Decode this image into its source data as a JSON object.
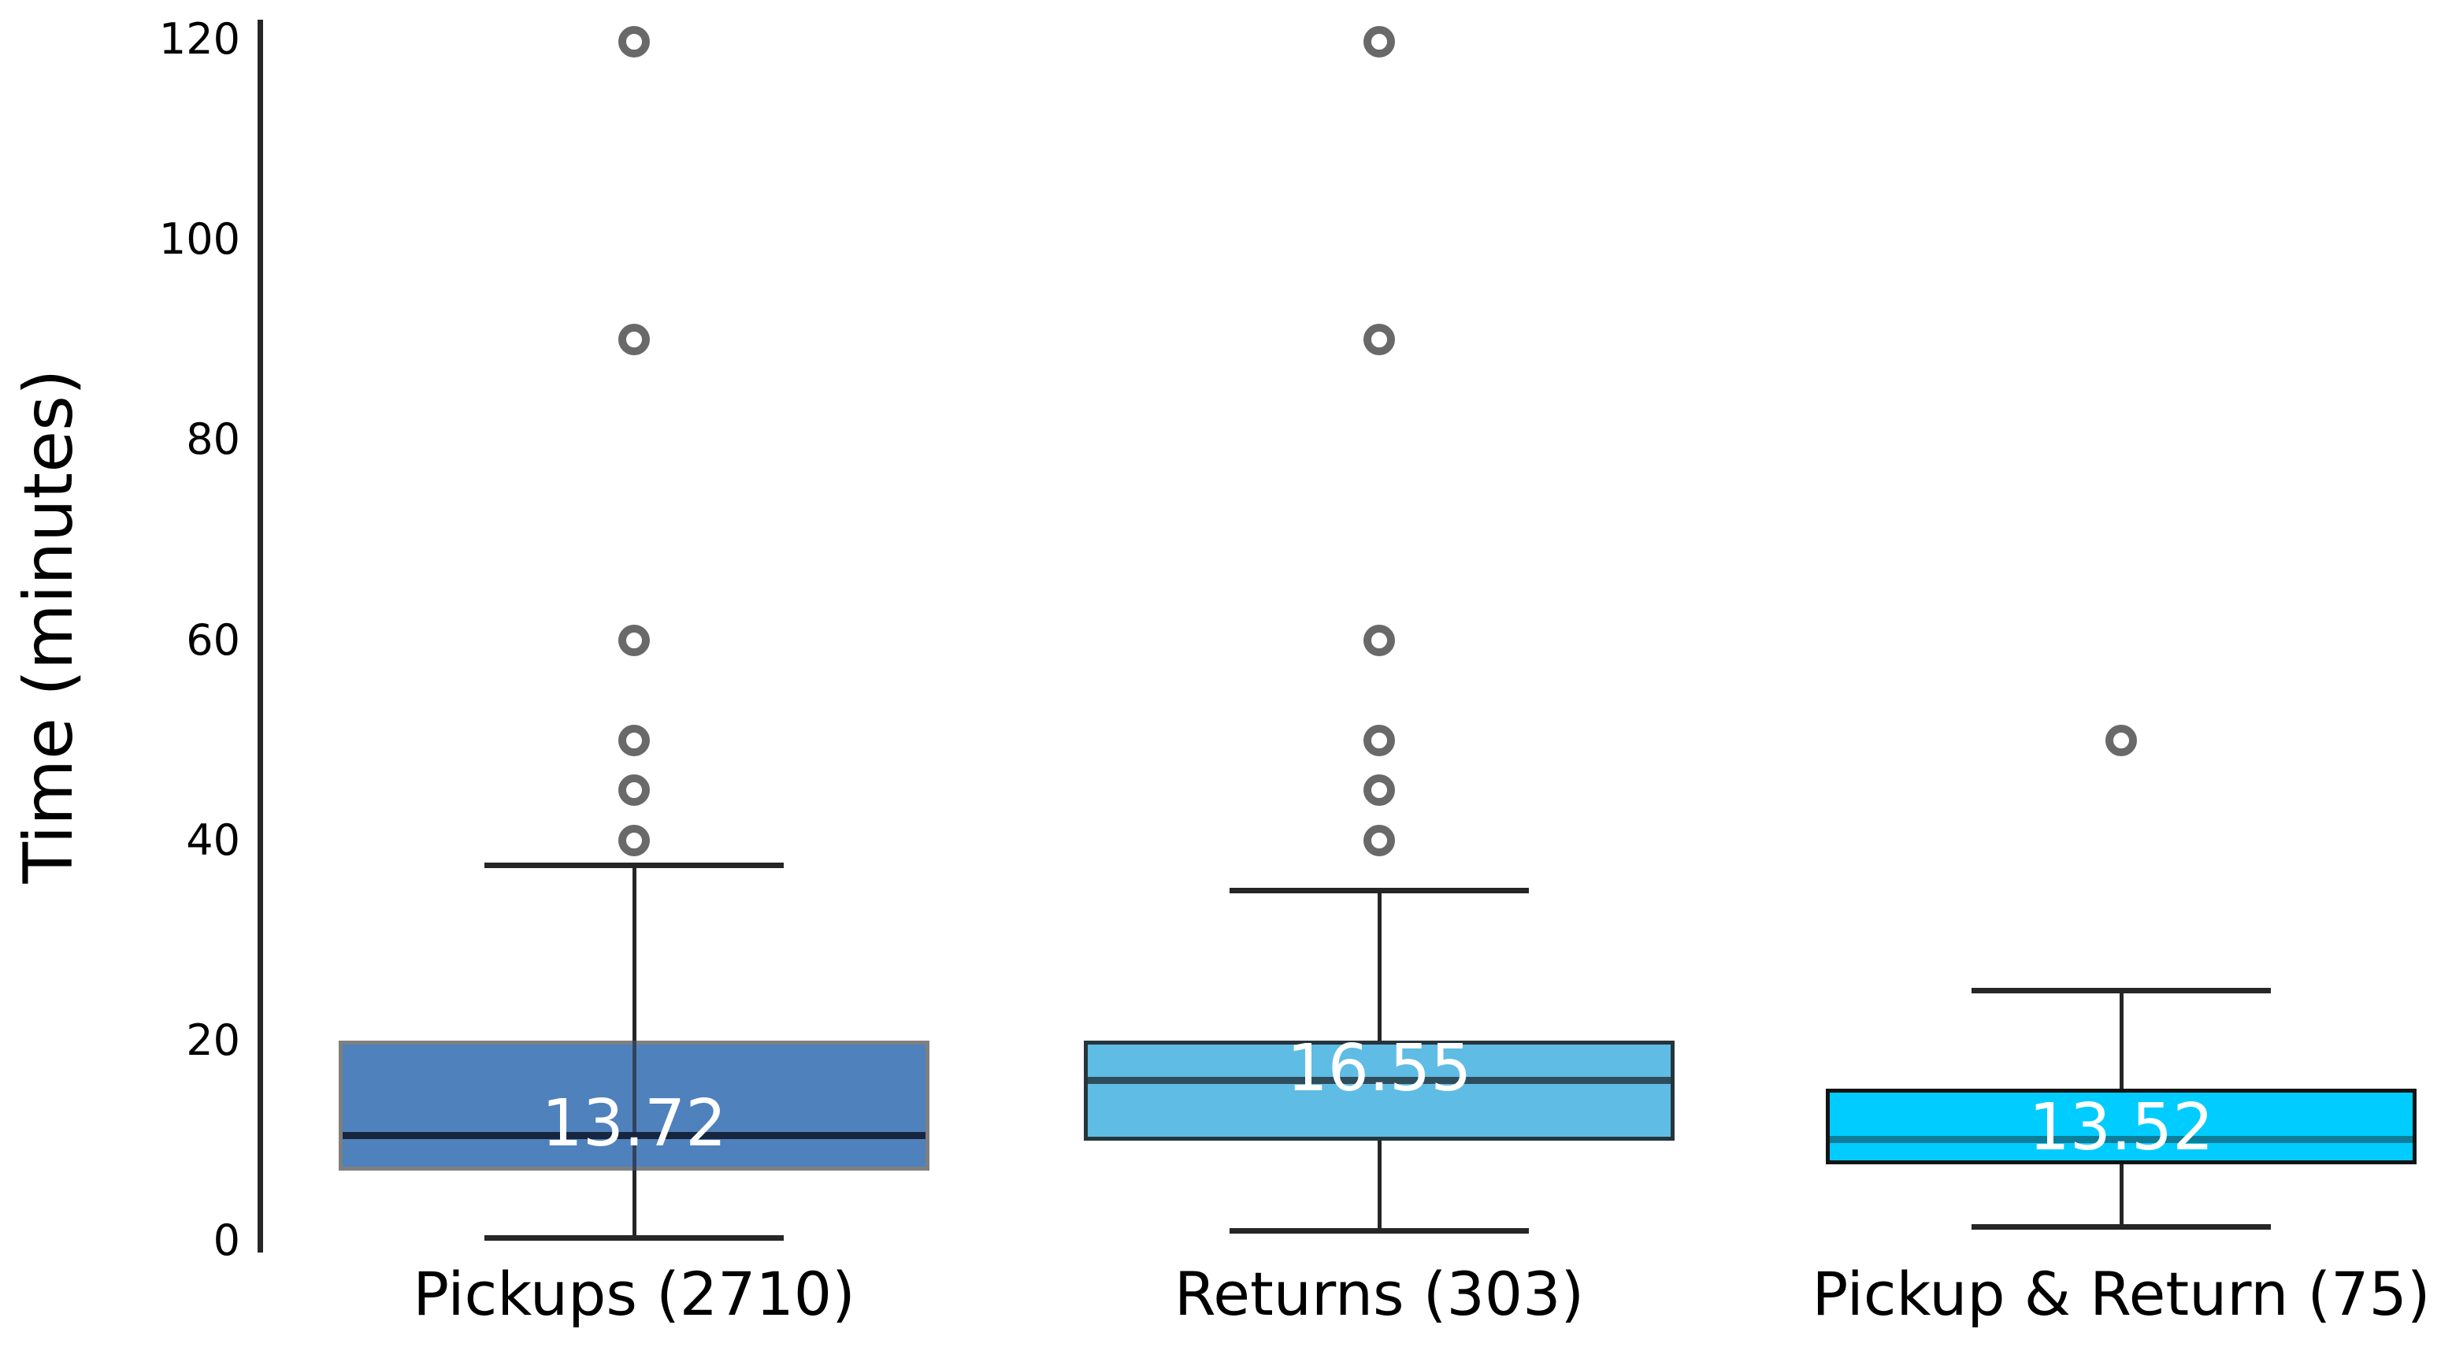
{
  "chart_data": {
    "type": "boxplot",
    "title": "",
    "ylabel": "Time (minutes)",
    "xlabel": "",
    "ylim": [
      0,
      120
    ],
    "y_ticks": [
      "0",
      "20",
      "40",
      "60",
      "80",
      "100",
      "120"
    ],
    "y_tick_values": [
      0,
      20,
      40,
      60,
      80,
      100,
      120
    ],
    "grid": "off",
    "legend": "none",
    "background_color": "#ffffff",
    "axis_color": "#262626",
    "text_color": "#000000",
    "outlier_ring_color": "#696969",
    "categories": [
      "Pickups (2710)",
      "Returns (303)",
      "Pickup & Return (75)"
    ],
    "series": [
      {
        "name": "Pickups",
        "count": 2710,
        "label": "Pickups (2710)",
        "q1": 7,
        "median": 10.5,
        "q3": 20,
        "whisker_low": 0.3,
        "whisker_high": 37.5,
        "mean": 13.72,
        "mean_label": "13.72",
        "outliers": [
          40,
          45,
          50,
          60,
          90,
          119.8
        ],
        "box_color": "#4F81BD",
        "border_color": "#7F7F7F",
        "median_color": "#17253F"
      },
      {
        "name": "Returns",
        "count": 303,
        "label": "Returns (303)",
        "q1": 10,
        "median": 16,
        "q3": 20,
        "whisker_low": 1,
        "whisker_high": 35,
        "mean": 16.55,
        "mean_label": "16.55",
        "outliers": [
          40,
          45,
          50,
          60,
          90,
          119.8
        ],
        "box_color": "#5FBCE4",
        "border_color": "#25353C",
        "median_color": "#2E4D5C"
      },
      {
        "name": "Pickup & Return",
        "count": 75,
        "label": "Pickup & Return (75)",
        "q1": 7.6,
        "median": 10.1,
        "q3": 15.2,
        "whisker_low": 1.4,
        "whisker_high": 25,
        "mean": 13.52,
        "mean_label": "13.52",
        "outliers": [
          50
        ],
        "box_color": "#00CCFF",
        "border_color": "#141414",
        "median_color": "#0E7D98"
      }
    ]
  }
}
